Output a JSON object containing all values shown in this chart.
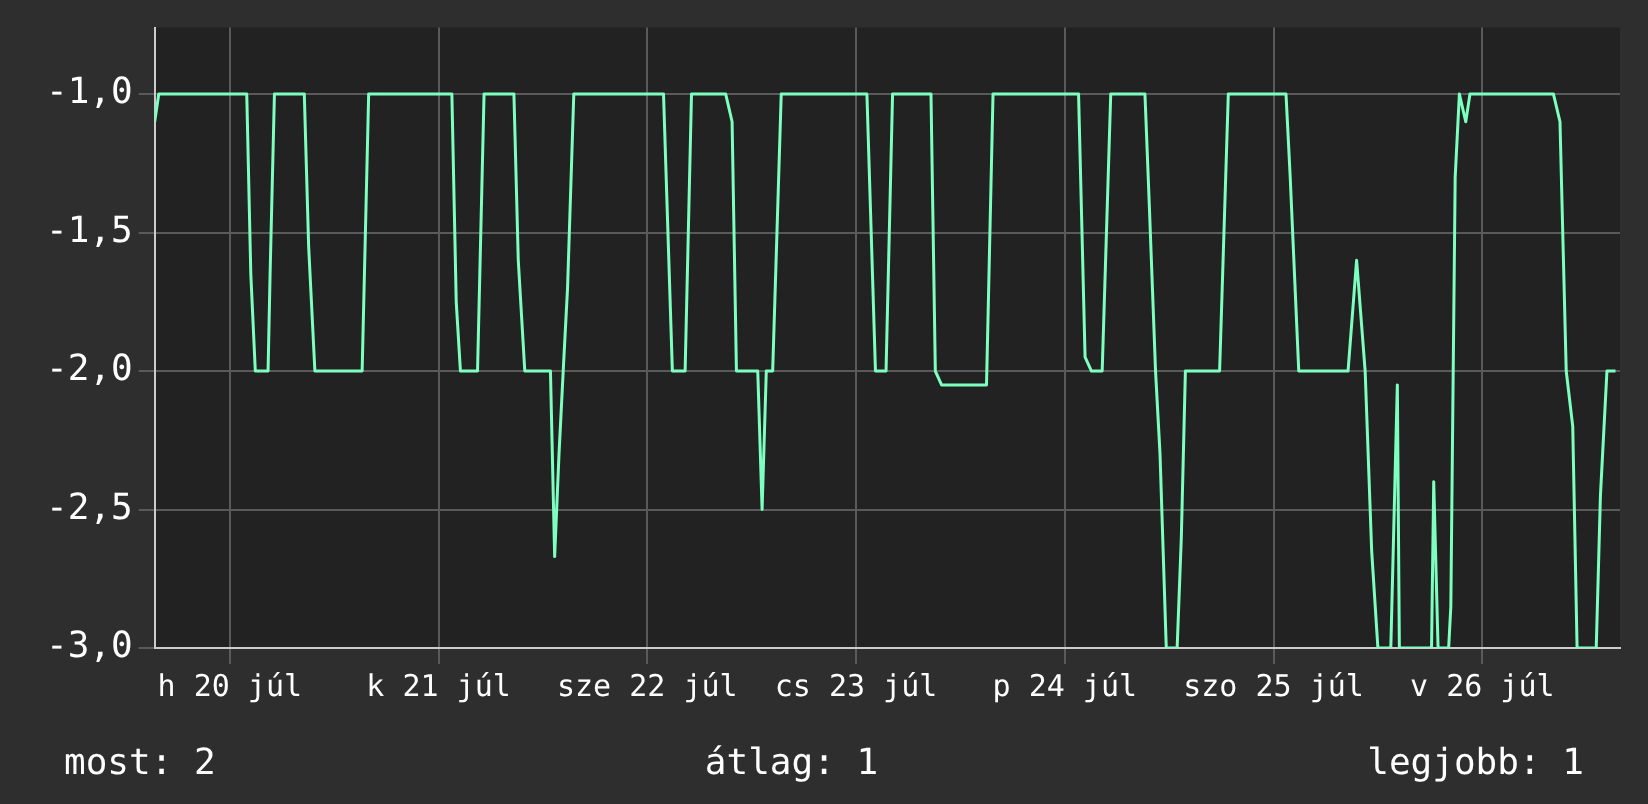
{
  "chart_data": {
    "type": "line",
    "x": [
      "--07-20T03:22",
      "--07-20T03:50",
      "--07-20T13:57",
      "--07-20T14:25",
      "--07-20T14:56",
      "--07-20T16:24",
      "--07-20T16:38",
      "--07-20T17:08",
      "--07-20T20:34",
      "--07-20T21:04",
      "--07-20T21:47",
      "--07-21T03:13",
      "--07-21T03:58",
      "--07-21T13:32",
      "--07-21T14:02",
      "--07-21T14:31",
      "--07-21T16:29",
      "--07-21T17:14",
      "--07-21T20:40",
      "--07-21T21:10",
      "--07-21T21:55",
      "--07-22T00:52",
      "--07-22T01:21",
      "--07-22T01:51",
      "--07-22T02:20",
      "--07-22T02:50",
      "--07-22T03:33",
      "--07-22T13:52",
      "--07-22T14:53",
      "--07-22T16:21",
      "--07-22T17:05",
      "--07-22T21:01",
      "--07-22T21:45",
      "--07-22T22:15",
      "--07-23T00:42",
      "--07-23T01:12",
      "--07-23T01:41",
      "--07-23T02:25",
      "--07-23T03:24",
      "--07-23T13:15",
      "--07-23T14:14",
      "--07-23T15:27",
      "--07-23T16:12",
      "--07-23T20:37",
      "--07-23T21:07",
      "--07-23T21:50",
      "--07-24T03:00",
      "--07-24T03:45",
      "--07-24T13:35",
      "--07-24T14:20",
      "--07-24T15:04",
      "--07-24T16:18",
      "--07-24T17:17",
      "--07-24T21:13",
      "--07-24T21:43",
      "--07-24T22:26",
      "--07-24T22:57",
      "--07-24T23:40",
      "--07-25T00:55",
      "--07-25T01:24",
      "--07-25T01:52",
      "--07-25T05:48",
      "--07-25T06:48",
      "--07-25T13:26",
      "--07-25T13:55",
      "--07-25T14:54",
      "--07-25T20:34",
      "--07-25T21:33",
      "--07-25T22:32",
      "--07-25T23:17",
      "--07-26T00:00",
      "--07-26T01:29",
      "--07-26T02:14",
      "--07-26T02:28",
      "--07-26T06:10",
      "--07-26T06:25",
      "--07-26T06:55",
      "--07-26T08:08",
      "--07-26T08:23",
      "--07-26T08:53",
      "--07-26T09:22",
      "--07-26T10:06",
      "--07-26T10:35",
      "--07-26T20:11",
      "--07-26T20:56",
      "--07-26T21:39",
      "--07-26T22:24",
      "--07-26T22:54",
      "--07-27T01:06",
      "--07-27T01:35",
      "--07-27T02:20",
      "--07-27T03:19"
    ],
    "series": [
      {
        "color": "#7dffbf",
        "values": [
          -1.1,
          -1.0,
          -1.0,
          -1.65,
          -2.0,
          -2.0,
          -1.65,
          -1.0,
          -1.0,
          -1.55,
          -2.0,
          -2.0,
          -1.0,
          -1.0,
          -1.75,
          -2.0,
          -2.0,
          -1.0,
          -1.0,
          -1.6,
          -2.0,
          -2.0,
          -2.67,
          -2.3,
          -2.0,
          -1.7,
          -1.0,
          -1.0,
          -2.0,
          -2.0,
          -1.0,
          -1.0,
          -1.1,
          -2.0,
          -2.0,
          -2.5,
          -2.0,
          -2.0,
          -1.0,
          -1.0,
          -2.0,
          -2.0,
          -1.0,
          -1.0,
          -2.0,
          -2.05,
          -2.05,
          -1.0,
          -1.0,
          -1.95,
          -2.0,
          -2.0,
          -1.0,
          -1.0,
          -1.4,
          -2.0,
          -2.3,
          -3.0,
          -3.0,
          -2.6,
          -2.0,
          -2.0,
          -1.0,
          -1.0,
          -1.3,
          -2.0,
          -2.0,
          -1.6,
          -2.0,
          -2.65,
          -3.0,
          -3.0,
          -2.05,
          -3.0,
          -3.0,
          -2.4,
          -3.0,
          -3.0,
          -2.85,
          -1.3,
          -1.0,
          -1.1,
          -1.0,
          -1.0,
          -1.1,
          -2.0,
          -2.2,
          -3.0,
          -3.0,
          -2.45,
          -2.0,
          -2.0
        ]
      }
    ],
    "xlim": [
      "--07-20T03:22",
      "--07-27T03:50"
    ],
    "xticks": [
      {
        "value": "--07-20T12:00",
        "label": "h 20 júl"
      },
      {
        "value": "--07-21T12:00",
        "label": "k 21 júl"
      },
      {
        "value": "--07-22T12:00",
        "label": "sze 22 júl"
      },
      {
        "value": "--07-23T12:00",
        "label": "cs 23 júl"
      },
      {
        "value": "--07-24T12:00",
        "label": "p 24 júl"
      },
      {
        "value": "--07-25T12:00",
        "label": "szo 25 júl"
      },
      {
        "value": "--07-26T12:00",
        "label": "v 26 júl"
      }
    ],
    "ylim": [
      -3,
      -0.76
    ],
    "yticks": [
      {
        "value": -3,
        "label": "-3,0"
      },
      {
        "value": -2.5,
        "label": "-2,5"
      },
      {
        "value": -2,
        "label": "-2,0"
      },
      {
        "value": -1.5,
        "label": "-1,5"
      },
      {
        "value": -1,
        "label": "-1,0"
      }
    ],
    "grid": true,
    "legend": false,
    "marker": "none",
    "line_style": "solid",
    "annotations": [
      "most: 2",
      "átlag: 1",
      "legjobb: 1"
    ]
  }
}
